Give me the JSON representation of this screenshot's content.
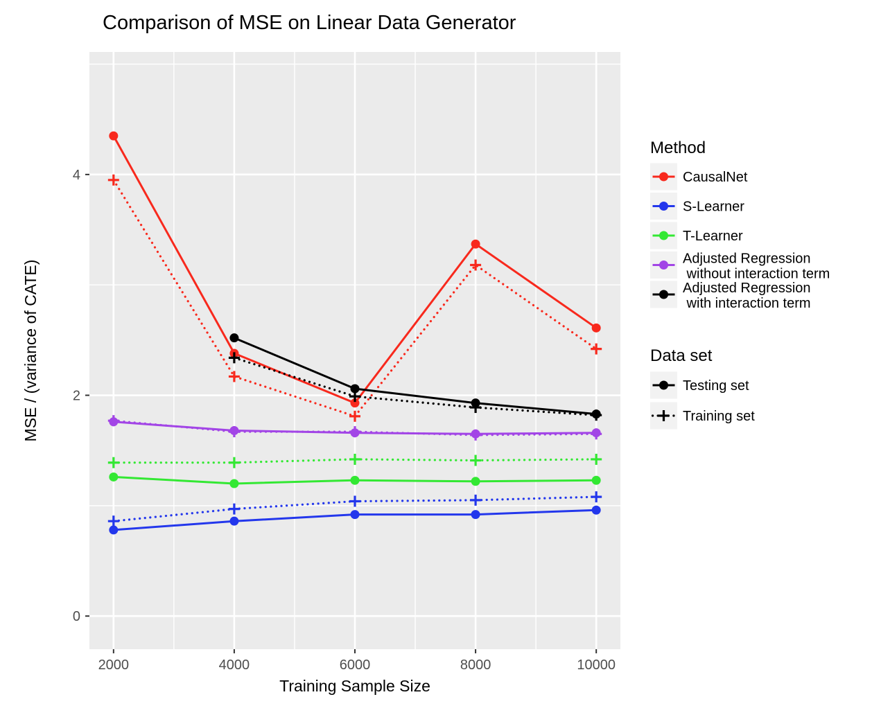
{
  "chart_data": {
    "type": "line",
    "title": "Comparison of MSE on Linear Data Generator",
    "xlabel": "Training Sample Size",
    "ylabel": "MSE / (variance of CATE)",
    "x": [
      2000,
      4000,
      6000,
      8000,
      10000
    ],
    "xticks": [
      "2000",
      "4000",
      "6000",
      "8000",
      "10000"
    ],
    "xtick_values": [
      2000,
      4000,
      6000,
      8000,
      10000
    ],
    "yticks": [
      "0",
      "2",
      "4"
    ],
    "ytick_values": [
      0,
      2,
      4
    ],
    "xlim": [
      1600,
      10400
    ],
    "ylim": [
      -0.3,
      5.11
    ],
    "grid": "white major and minor gridlines on gray panel",
    "panel_bg": "#EBEBEB",
    "grid_color": "#FFFFFF",
    "tick_label_color": "#4D4D4D",
    "series": [
      {
        "method": "CausalNet",
        "dataset": "Testing set",
        "color": "#F8291D",
        "line": "solid",
        "marker": "circle",
        "values": [
          4.35,
          2.38,
          1.93,
          3.37,
          2.61
        ]
      },
      {
        "method": "CausalNet",
        "dataset": "Training set",
        "color": "#F8291D",
        "line": "dotted",
        "marker": "plus",
        "values": [
          3.95,
          2.17,
          1.81,
          3.18,
          2.42
        ]
      },
      {
        "method": "S-Learner",
        "dataset": "Testing set",
        "color": "#2337EC",
        "line": "solid",
        "marker": "circle",
        "values": [
          0.78,
          0.86,
          0.92,
          0.92,
          0.96
        ]
      },
      {
        "method": "S-Learner",
        "dataset": "Training set",
        "color": "#2337EC",
        "line": "dotted",
        "marker": "plus",
        "values": [
          0.86,
          0.97,
          1.04,
          1.05,
          1.08
        ]
      },
      {
        "method": "T-Learner",
        "dataset": "Testing set",
        "color": "#33E833",
        "line": "solid",
        "marker": "circle",
        "values": [
          1.26,
          1.2,
          1.23,
          1.22,
          1.23
        ]
      },
      {
        "method": "T-Learner",
        "dataset": "Training set",
        "color": "#33E833",
        "line": "dotted",
        "marker": "plus",
        "values": [
          1.39,
          1.39,
          1.42,
          1.41,
          1.42
        ]
      },
      {
        "method": "Adjusted Regression without interaction term",
        "dataset": "Testing set",
        "color": "#A245E6",
        "line": "solid",
        "marker": "circle",
        "values": [
          1.76,
          1.68,
          1.66,
          1.65,
          1.66
        ]
      },
      {
        "method": "Adjusted Regression without interaction term",
        "dataset": "Training set",
        "color": "#A245E6",
        "line": "dotted",
        "marker": "plus",
        "values": [
          1.77,
          1.67,
          1.67,
          1.64,
          1.65
        ]
      },
      {
        "method": "Adjusted Regression with interaction term",
        "dataset": "Testing set",
        "color": "#000000",
        "line": "solid",
        "marker": "circle",
        "values": [
          null,
          2.52,
          2.06,
          1.93,
          1.83
        ]
      },
      {
        "method": "Adjusted Regression with interaction term",
        "dataset": "Training set",
        "color": "#000000",
        "line": "dotted",
        "marker": "plus",
        "values": [
          null,
          2.34,
          1.99,
          1.89,
          1.82
        ]
      }
    ],
    "legend": {
      "key_bg": "#F2F2F2",
      "method": {
        "title": "Method",
        "items": [
          {
            "label_lines": [
              "CausalNet"
            ],
            "color": "#F8291D"
          },
          {
            "label_lines": [
              "S-Learner"
            ],
            "color": "#2337EC"
          },
          {
            "label_lines": [
              "T-Learner"
            ],
            "color": "#33E833"
          },
          {
            "label_lines": [
              "Adjusted Regression",
              " without interaction term"
            ],
            "color": "#A245E6"
          },
          {
            "label_lines": [
              "Adjusted Regression",
              " with interaction term"
            ],
            "color": "#000000"
          }
        ]
      },
      "dataset": {
        "title": "Data set",
        "items": [
          {
            "label_lines": [
              "Testing set"
            ],
            "marker": "circle",
            "line": "solid",
            "color": "#000000"
          },
          {
            "label_lines": [
              "Training set"
            ],
            "marker": "plus",
            "line": "dotted",
            "color": "#000000"
          }
        ]
      }
    }
  }
}
